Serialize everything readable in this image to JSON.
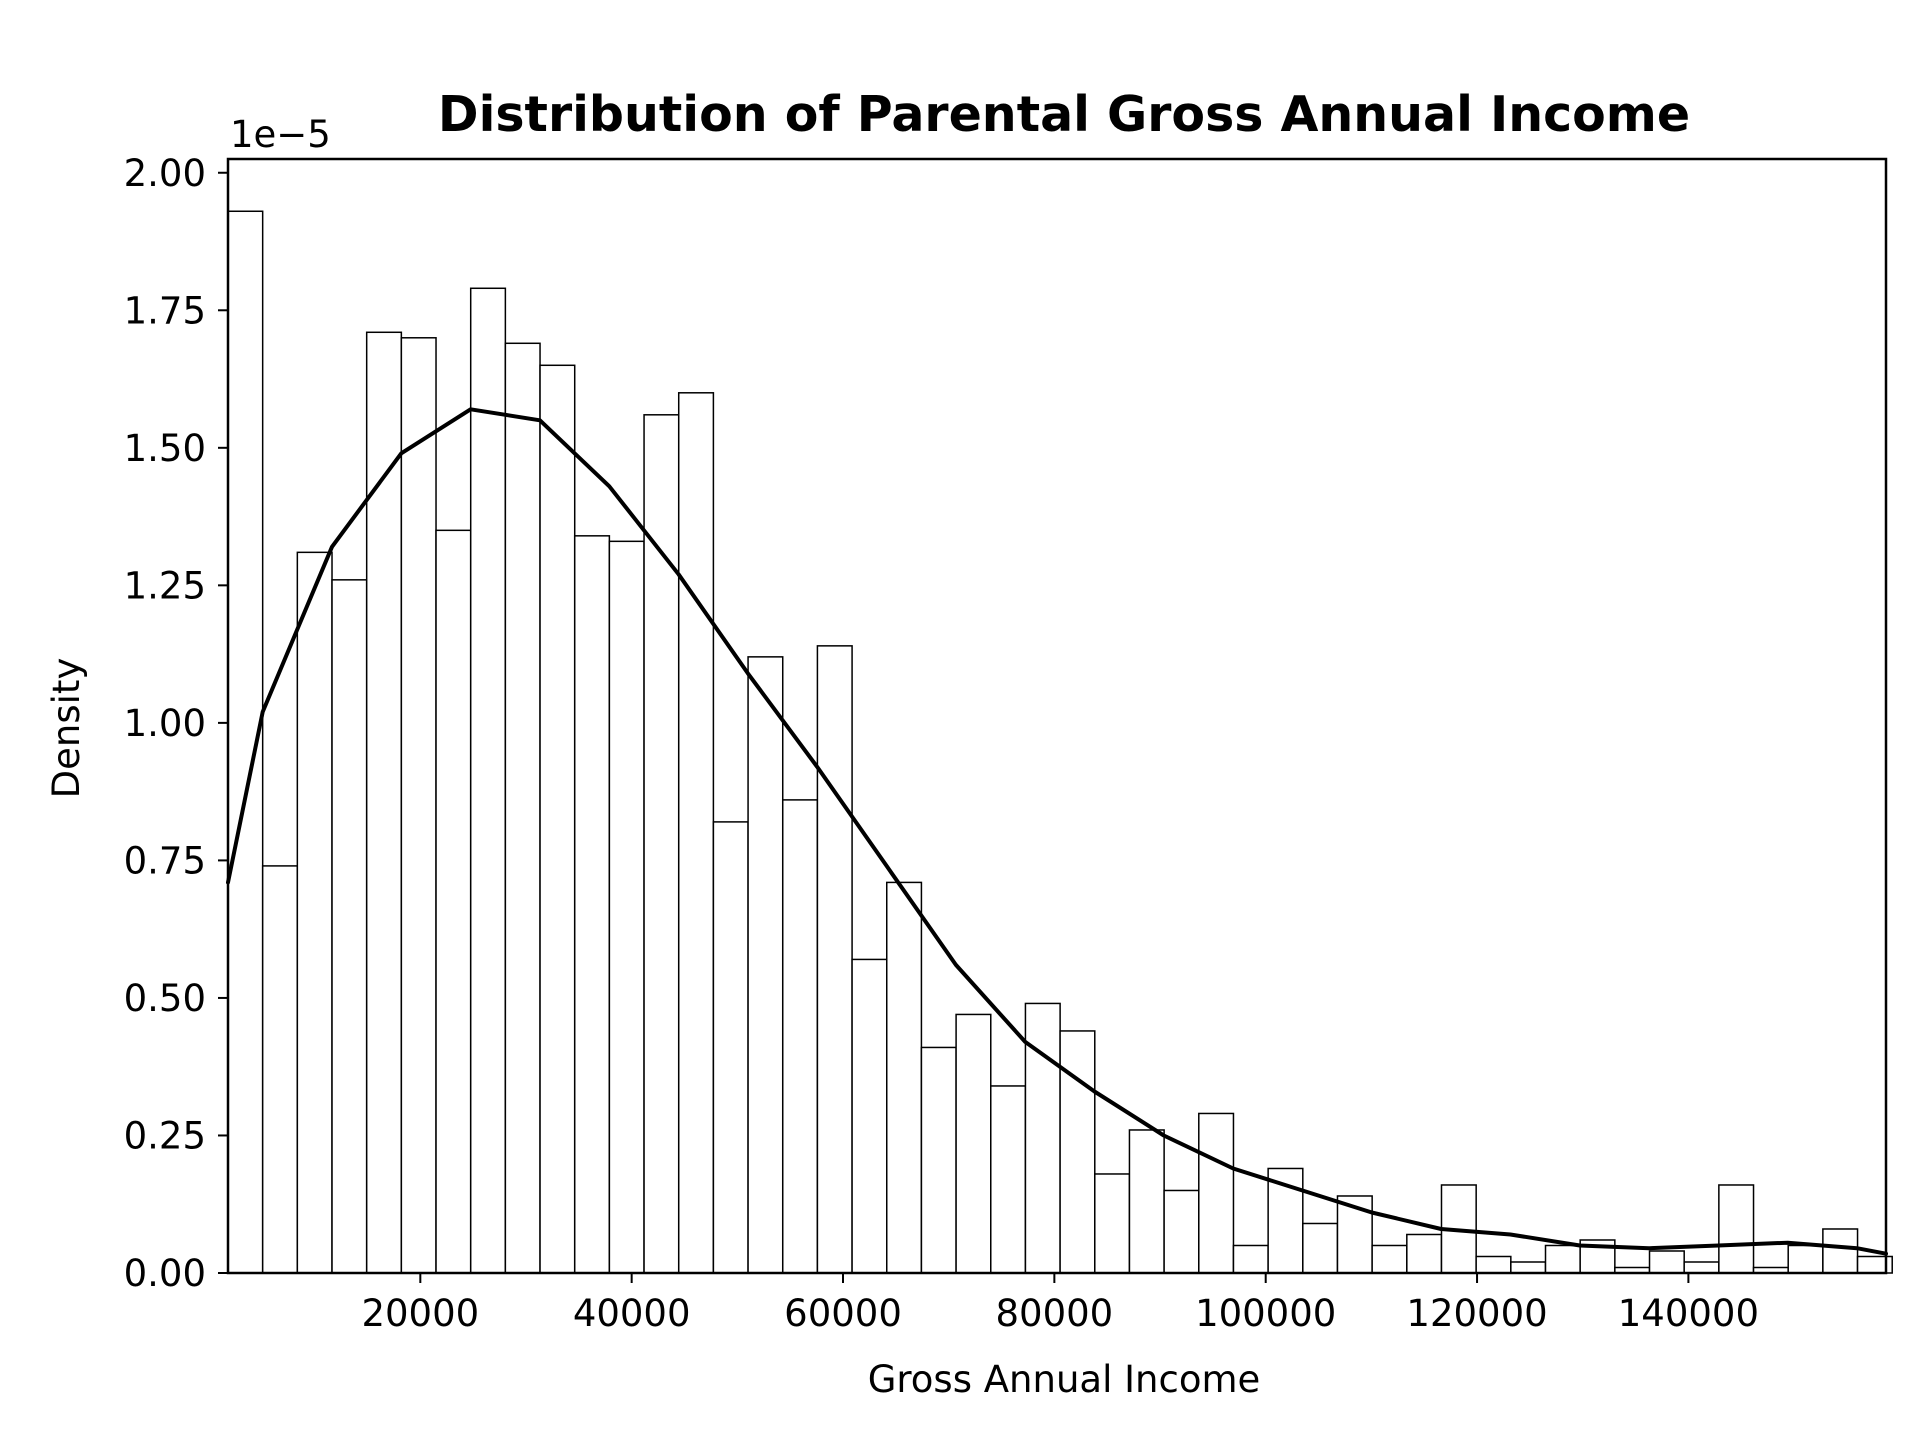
{
  "chart_data": {
    "type": "bar",
    "title": "Distribution of Parental Gross Annual Income",
    "xlabel": "Gross Annual Income",
    "ylabel": "Density",
    "y_scale_label": "1e−5",
    "y_multiplier_exponent": -5,
    "xlim": [
      1800,
      158700
    ],
    "ylim": [
      0,
      2.025
    ],
    "x_ticks": [
      20000,
      40000,
      60000,
      80000,
      100000,
      120000,
      140000
    ],
    "x_tick_labels": [
      "20000",
      "40000",
      "60000",
      "80000",
      "100000",
      "120000",
      "140000"
    ],
    "y_ticks": [
      0,
      0.25,
      0.5,
      0.75,
      1.0,
      1.25,
      1.5,
      1.75,
      2.0
    ],
    "y_tick_labels": [
      "0.00",
      "0.25",
      "0.50",
      "0.75",
      "1.00",
      "1.25",
      "1.50",
      "1.75",
      "2.00"
    ],
    "grid": false,
    "bins": {
      "start": 1800,
      "width": 3281,
      "values": [
        1.93,
        0.74,
        1.31,
        1.26,
        1.71,
        1.7,
        1.35,
        1.79,
        1.69,
        1.65,
        1.34,
        1.33,
        1.56,
        1.6,
        0.82,
        1.12,
        0.86,
        1.14,
        0.57,
        0.71,
        0.41,
        0.47,
        0.34,
        0.49,
        0.44,
        0.18,
        0.26,
        0.15,
        0.29,
        0.05,
        0.19,
        0.09,
        0.14,
        0.05,
        0.07,
        0.16,
        0.03,
        0.02,
        0.05,
        0.06,
        0.01,
        0.04,
        0.02,
        0.16,
        0.01,
        0.05,
        0.08,
        0.03
      ]
    },
    "series": [
      {
        "type": "line",
        "x": [
          1800,
          5080,
          8360,
          11640,
          18200,
          24760,
          31320,
          37880,
          44440,
          51000,
          57560,
          64120,
          70680,
          77240,
          83800,
          90360,
          96920,
          103480,
          110040,
          116600,
          123160,
          129720,
          136280,
          142840,
          149400,
          155960,
          158700
        ],
        "values": [
          0.71,
          1.02,
          1.17,
          1.32,
          1.49,
          1.57,
          1.55,
          1.43,
          1.27,
          1.09,
          0.92,
          0.74,
          0.56,
          0.42,
          0.33,
          0.25,
          0.19,
          0.15,
          0.11,
          0.08,
          0.07,
          0.05,
          0.045,
          0.05,
          0.055,
          0.045,
          0.035
        ]
      }
    ],
    "colors": {
      "bar_fill": "#ffffff",
      "bar_edge": "#000000",
      "kde_line": "#000000"
    }
  }
}
